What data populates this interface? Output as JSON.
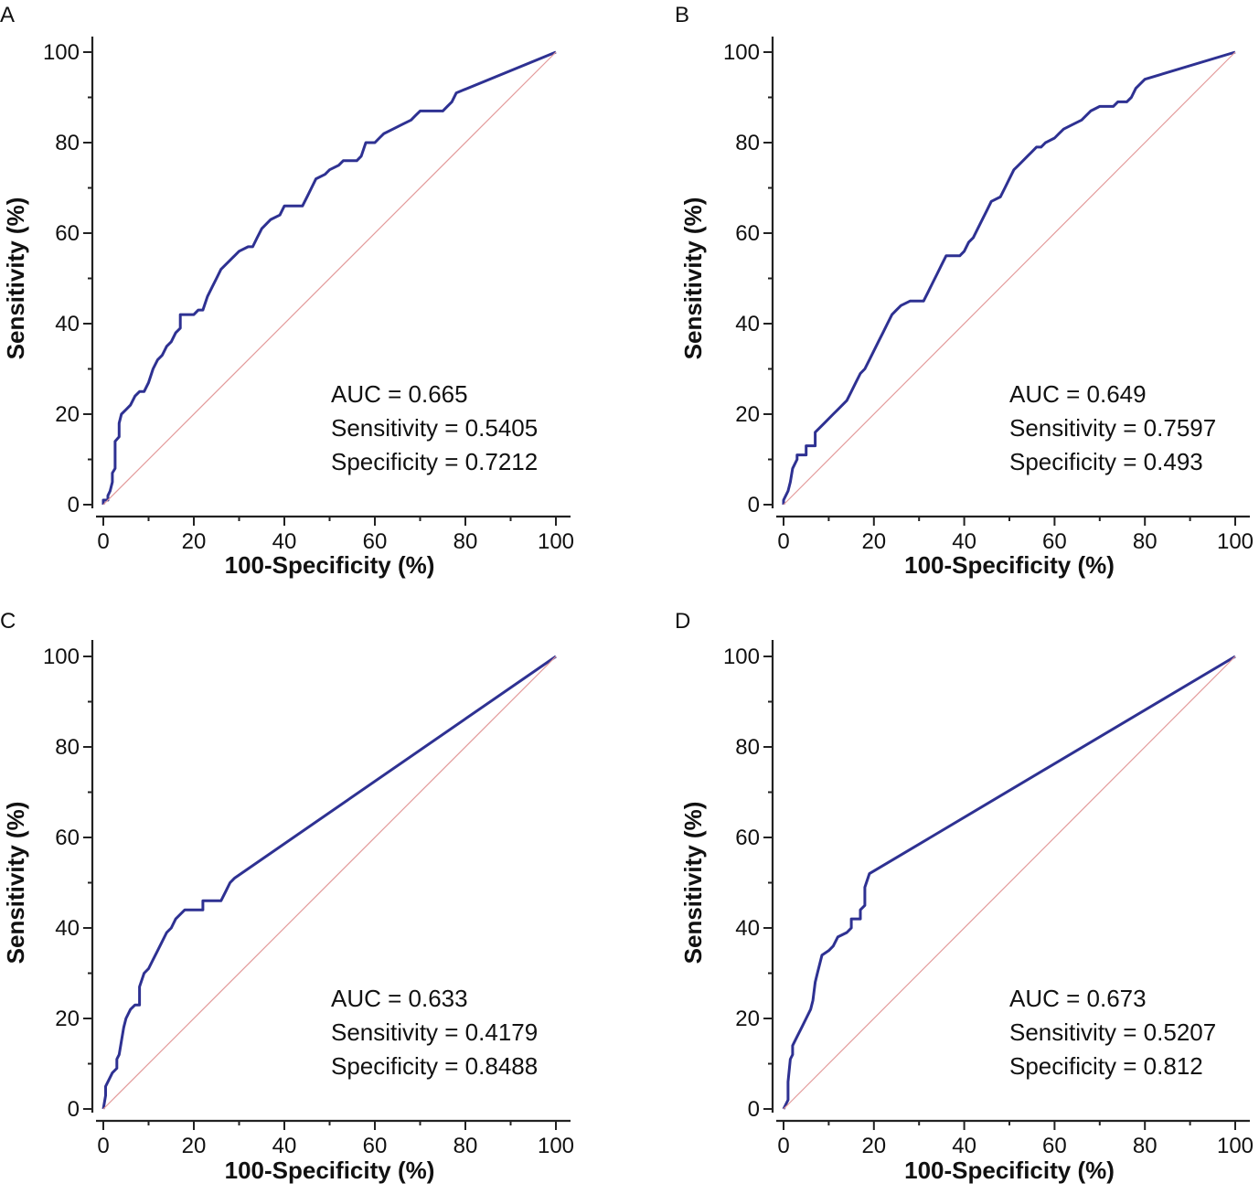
{
  "colors": {
    "roc": "#2e3192",
    "reference": "#e39a9a",
    "axis": "#222222"
  },
  "chart_data": [
    {
      "panel": "A",
      "type": "line",
      "title": "",
      "xlabel": "100-Specificity (%)",
      "ylabel": "Sensitivity (%)",
      "xlim": [
        0,
        100
      ],
      "ylim": [
        0,
        100
      ],
      "xticks": [
        "0",
        "20",
        "40",
        "60",
        "80",
        "100"
      ],
      "yticks": [
        "0",
        "20",
        "40",
        "60",
        "80",
        "100"
      ],
      "stats": [
        "AUC = 0.665",
        "Sensitivity = 0.5405",
        "Specificity = 0.7212"
      ],
      "series": [
        {
          "name": "ROC curve",
          "points": [
            [
              0,
              0
            ],
            [
              0,
              1
            ],
            [
              1,
              1
            ],
            [
              1,
              2
            ],
            [
              1.5,
              3
            ],
            [
              2,
              5
            ],
            [
              2,
              7
            ],
            [
              2.6,
              8
            ],
            [
              2.6,
              14
            ],
            [
              3.5,
              15
            ],
            [
              3.5,
              18
            ],
            [
              4,
              20
            ],
            [
              5,
              21
            ],
            [
              6,
              22
            ],
            [
              7,
              24
            ],
            [
              8,
              25
            ],
            [
              9,
              25
            ],
            [
              10,
              27
            ],
            [
              11,
              30
            ],
            [
              12,
              32
            ],
            [
              13,
              33
            ],
            [
              14,
              35
            ],
            [
              15,
              36
            ],
            [
              16,
              38
            ],
            [
              17,
              39
            ],
            [
              17,
              42
            ],
            [
              20,
              42
            ],
            [
              21,
              43
            ],
            [
              22,
              43
            ],
            [
              23,
              46
            ],
            [
              24,
              48
            ],
            [
              25,
              50
            ],
            [
              26,
              52
            ],
            [
              27,
              53
            ],
            [
              28,
              54
            ],
            [
              29,
              55
            ],
            [
              30,
              56
            ],
            [
              32,
              57
            ],
            [
              33,
              57
            ],
            [
              34,
              59
            ],
            [
              35,
              61
            ],
            [
              36,
              62
            ],
            [
              37,
              63
            ],
            [
              39,
              64
            ],
            [
              40,
              66
            ],
            [
              44,
              66
            ],
            [
              45,
              68
            ],
            [
              46,
              70
            ],
            [
              47,
              72
            ],
            [
              49,
              73
            ],
            [
              50,
              74
            ],
            [
              52,
              75
            ],
            [
              53,
              76
            ],
            [
              56,
              76
            ],
            [
              57,
              77
            ],
            [
              58,
              80
            ],
            [
              60,
              80
            ],
            [
              61,
              81
            ],
            [
              62,
              82
            ],
            [
              64,
              83
            ],
            [
              66,
              84
            ],
            [
              68,
              85
            ],
            [
              69,
              86
            ],
            [
              70,
              87
            ],
            [
              74,
              87
            ],
            [
              75,
              87
            ],
            [
              76,
              88
            ],
            [
              77,
              89
            ],
            [
              78,
              91
            ],
            [
              100,
              100
            ]
          ]
        },
        {
          "name": "Reference",
          "points": [
            [
              0,
              0
            ],
            [
              100,
              100
            ]
          ]
        }
      ]
    },
    {
      "panel": "B",
      "type": "line",
      "title": "",
      "xlabel": "100-Specificity (%)",
      "ylabel": "Sensitivity (%)",
      "xlim": [
        0,
        100
      ],
      "ylim": [
        0,
        100
      ],
      "xticks": [
        "0",
        "20",
        "40",
        "60",
        "80",
        "100"
      ],
      "yticks": [
        "0",
        "20",
        "40",
        "60",
        "80",
        "100"
      ],
      "stats": [
        "AUC = 0.649",
        "Sensitivity = 0.7597",
        "Specificity = 0.493"
      ],
      "series": [
        {
          "name": "ROC curve",
          "points": [
            [
              0,
              0
            ],
            [
              0,
              1
            ],
            [
              1,
              3
            ],
            [
              1.5,
              5
            ],
            [
              2,
              8
            ],
            [
              3,
              10
            ],
            [
              3,
              11
            ],
            [
              5,
              11
            ],
            [
              5,
              13
            ],
            [
              7,
              13
            ],
            [
              7,
              16
            ],
            [
              9,
              18
            ],
            [
              11,
              20
            ],
            [
              12,
              21
            ],
            [
              14,
              23
            ],
            [
              15,
              25
            ],
            [
              16,
              27
            ],
            [
              17,
              29
            ],
            [
              18,
              30
            ],
            [
              19,
              32
            ],
            [
              20,
              34
            ],
            [
              21,
              36
            ],
            [
              22,
              38
            ],
            [
              23,
              40
            ],
            [
              24,
              42
            ],
            [
              25,
              43
            ],
            [
              26,
              44
            ],
            [
              28,
              45
            ],
            [
              31,
              45
            ],
            [
              32,
              47
            ],
            [
              33,
              49
            ],
            [
              34,
              51
            ],
            [
              35,
              53
            ],
            [
              36,
              55
            ],
            [
              39,
              55
            ],
            [
              40,
              56
            ],
            [
              41,
              58
            ],
            [
              42,
              59
            ],
            [
              43,
              61
            ],
            [
              44,
              63
            ],
            [
              45,
              65
            ],
            [
              46,
              67
            ],
            [
              48,
              68
            ],
            [
              49,
              70
            ],
            [
              50,
              72
            ],
            [
              51,
              74
            ],
            [
              52,
              75
            ],
            [
              54,
              77
            ],
            [
              55,
              78
            ],
            [
              56,
              79
            ],
            [
              57,
              79
            ],
            [
              58,
              80
            ],
            [
              60,
              81
            ],
            [
              61,
              82
            ],
            [
              62,
              83
            ],
            [
              64,
              84
            ],
            [
              66,
              85
            ],
            [
              67,
              86
            ],
            [
              68,
              87
            ],
            [
              70,
              88
            ],
            [
              73,
              88
            ],
            [
              74,
              89
            ],
            [
              76,
              89
            ],
            [
              77,
              90
            ],
            [
              78,
              92
            ],
            [
              79,
              93
            ],
            [
              80,
              94
            ],
            [
              100,
              100
            ]
          ]
        },
        {
          "name": "Reference",
          "points": [
            [
              0,
              0
            ],
            [
              100,
              100
            ]
          ]
        }
      ]
    },
    {
      "panel": "C",
      "type": "line",
      "title": "",
      "xlabel": "100-Specificity (%)",
      "ylabel": "Sensitivity (%)",
      "xlim": [
        0,
        100
      ],
      "ylim": [
        0,
        100
      ],
      "xticks": [
        "0",
        "20",
        "40",
        "60",
        "80",
        "100"
      ],
      "yticks": [
        "0",
        "20",
        "40",
        "60",
        "80",
        "100"
      ],
      "stats": [
        "AUC = 0.633",
        "Sensitivity = 0.4179",
        "Specificity = 0.8488"
      ],
      "series": [
        {
          "name": "ROC curve",
          "points": [
            [
              0,
              0
            ],
            [
              0.5,
              3
            ],
            [
              0.5,
              5
            ],
            [
              1,
              6
            ],
            [
              2,
              8
            ],
            [
              3,
              9
            ],
            [
              3,
              11
            ],
            [
              3.5,
              12
            ],
            [
              4,
              15
            ],
            [
              4.5,
              18
            ],
            [
              5,
              20
            ],
            [
              6,
              22
            ],
            [
              7,
              23
            ],
            [
              8,
              23
            ],
            [
              8,
              27
            ],
            [
              9,
              30
            ],
            [
              10,
              31
            ],
            [
              11,
              33
            ],
            [
              12,
              35
            ],
            [
              13,
              37
            ],
            [
              14,
              39
            ],
            [
              15,
              40
            ],
            [
              16,
              42
            ],
            [
              17,
              43
            ],
            [
              18,
              44
            ],
            [
              22,
              44
            ],
            [
              22,
              46
            ],
            [
              26,
              46
            ],
            [
              27,
              48
            ],
            [
              28,
              50
            ],
            [
              29,
              51
            ],
            [
              100,
              100
            ]
          ]
        },
        {
          "name": "Reference",
          "points": [
            [
              0,
              0
            ],
            [
              100,
              100
            ]
          ]
        }
      ]
    },
    {
      "panel": "D",
      "type": "line",
      "title": "",
      "xlabel": "100-Specificity (%)",
      "ylabel": "Sensitivity (%)",
      "xlim": [
        0,
        100
      ],
      "ylim": [
        0,
        100
      ],
      "xticks": [
        "0",
        "20",
        "40",
        "60",
        "80",
        "100"
      ],
      "yticks": [
        "0",
        "20",
        "40",
        "60",
        "80",
        "100"
      ],
      "stats": [
        "AUC = 0.673",
        "Sensitivity = 0.5207",
        "Specificity = 0.812"
      ],
      "series": [
        {
          "name": "ROC curve",
          "points": [
            [
              0,
              0
            ],
            [
              0.5,
              1
            ],
            [
              1,
              2
            ],
            [
              1,
              6
            ],
            [
              1.5,
              11
            ],
            [
              2,
              12
            ],
            [
              2,
              14
            ],
            [
              3,
              16
            ],
            [
              4,
              18
            ],
            [
              5,
              20
            ],
            [
              6,
              22
            ],
            [
              6.5,
              24
            ],
            [
              7,
              28
            ],
            [
              7.5,
              30
            ],
            [
              8,
              32
            ],
            [
              8.5,
              34
            ],
            [
              10,
              35
            ],
            [
              11,
              36
            ],
            [
              12,
              38
            ],
            [
              14,
              39
            ],
            [
              15,
              40
            ],
            [
              15,
              42
            ],
            [
              17,
              42
            ],
            [
              17,
              44
            ],
            [
              18,
              45
            ],
            [
              18,
              49
            ],
            [
              19,
              52
            ],
            [
              100,
              100
            ]
          ]
        },
        {
          "name": "Reference",
          "points": [
            [
              0,
              0
            ],
            [
              100,
              100
            ]
          ]
        }
      ]
    }
  ]
}
